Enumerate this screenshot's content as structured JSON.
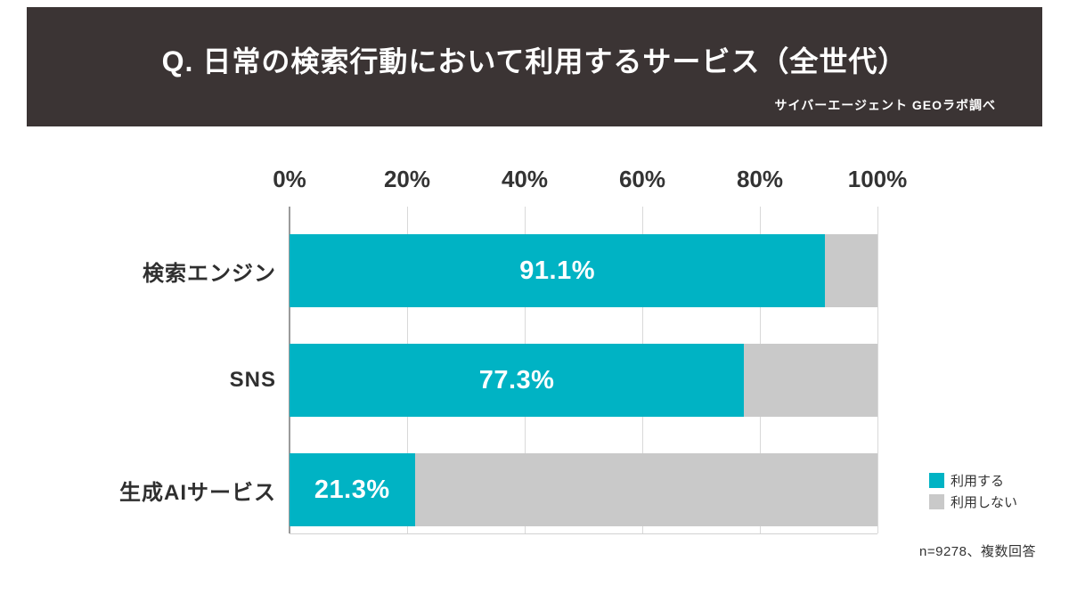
{
  "header": {
    "title": "Q. 日常の検索行動において利用するサービス（全世代）",
    "source": "サイバーエージェント GEOラボ調べ",
    "bg_color": "#3b3434"
  },
  "chart_data": {
    "type": "bar",
    "orientation": "horizontal",
    "stacked": true,
    "title": "Q. 日常の検索行動において利用するサービス（全世代）",
    "categories": [
      "検索エンジン",
      "SNS",
      "生成AIサービス"
    ],
    "series": [
      {
        "name": "利用する",
        "color": "#00b3c4",
        "values": [
          91.1,
          77.3,
          21.3
        ]
      },
      {
        "name": "利用しない",
        "color": "#c9c9c9",
        "values": [
          8.9,
          22.7,
          78.7
        ]
      }
    ],
    "value_labels": [
      "91.1%",
      "77.3%",
      "21.3%"
    ],
    "x_ticks": [
      "0%",
      "20%",
      "40%",
      "60%",
      "80%",
      "100%"
    ],
    "xlim": [
      0,
      100
    ],
    "grid": true,
    "legend_position": "right",
    "legend": [
      {
        "label": "利用する",
        "color": "#00b3c4"
      },
      {
        "label": "利用しない",
        "color": "#c9c9c9"
      }
    ],
    "note": "n=9278、複数回答"
  }
}
